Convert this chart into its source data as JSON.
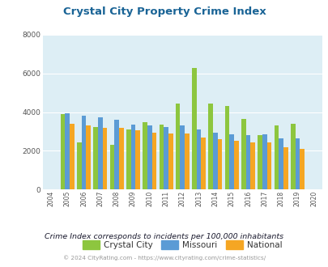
{
  "title": "Crystal City Property Crime Index",
  "years": [
    2004,
    2005,
    2006,
    2007,
    2008,
    2009,
    2010,
    2011,
    2012,
    2013,
    2014,
    2015,
    2016,
    2017,
    2018,
    2019,
    2020
  ],
  "crystal_city": [
    null,
    3900,
    2450,
    3250,
    2300,
    3100,
    3500,
    3350,
    4450,
    6300,
    4450,
    4300,
    3650,
    2800,
    3300,
    3400,
    null
  ],
  "missouri": [
    null,
    3950,
    3800,
    3750,
    3600,
    3350,
    3300,
    3250,
    3300,
    3100,
    2950,
    2850,
    2800,
    2850,
    2650,
    2650,
    null
  ],
  "national": [
    null,
    3400,
    3300,
    3200,
    3200,
    3050,
    2950,
    2900,
    2900,
    2700,
    2600,
    2500,
    2450,
    2450,
    2200,
    2100,
    null
  ],
  "crystal_city_color": "#8dc63f",
  "missouri_color": "#5b9bd5",
  "national_color": "#f5a623",
  "bg_color": "#ddeef5",
  "ylim": [
    0,
    8000
  ],
  "yticks": [
    0,
    2000,
    4000,
    6000,
    8000
  ],
  "subtitle": "Crime Index corresponds to incidents per 100,000 inhabitants",
  "footer": "© 2024 CityRating.com - https://www.cityrating.com/crime-statistics/",
  "legend_labels": [
    "Crystal City",
    "Missouri",
    "National"
  ],
  "title_color": "#1a6496",
  "subtitle_color": "#1a1a2e",
  "footer_color": "#999999"
}
